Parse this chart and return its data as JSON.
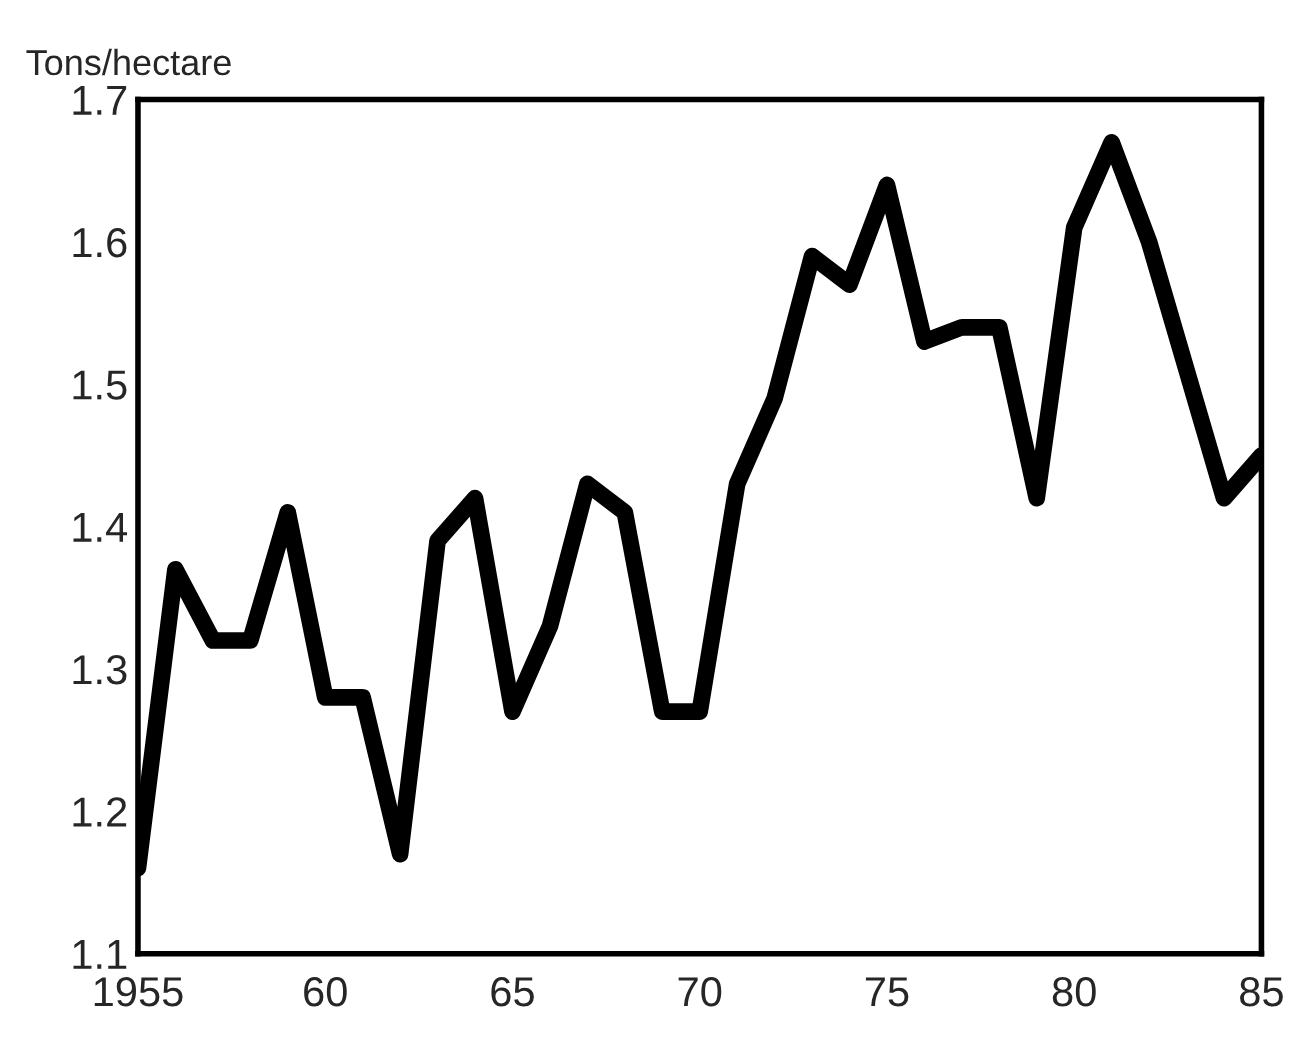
{
  "chart_data": {
    "type": "line",
    "ylabel": "Tons/hectare",
    "x": [
      1955,
      1956,
      1957,
      1958,
      1959,
      1960,
      1961,
      1962,
      1963,
      1964,
      1965,
      1966,
      1967,
      1968,
      1969,
      1970,
      1971,
      1972,
      1973,
      1974,
      1975,
      1976,
      1977,
      1978,
      1979,
      1980,
      1981,
      1982,
      1983,
      1984,
      1985
    ],
    "series": [
      {
        "color": "#000000",
        "values": [
          1.16,
          1.37,
          1.32,
          1.32,
          1.41,
          1.28,
          1.28,
          1.17,
          1.39,
          1.42,
          1.27,
          1.33,
          1.43,
          1.41,
          1.27,
          1.27,
          1.43,
          1.49,
          1.59,
          1.57,
          1.64,
          1.53,
          1.54,
          1.54,
          1.42,
          1.61,
          1.67,
          1.6,
          1.51,
          1.42,
          1.45
        ]
      }
    ],
    "xlim": [
      1955,
      1985
    ],
    "ylim": [
      1.1,
      1.7
    ],
    "xticks": [
      {
        "value": 1955,
        "label": "1955"
      },
      {
        "value": 1960,
        "label": "60"
      },
      {
        "value": 1965,
        "label": "65"
      },
      {
        "value": 1970,
        "label": "70"
      },
      {
        "value": 1975,
        "label": "75"
      },
      {
        "value": 1980,
        "label": "80"
      },
      {
        "value": 1985,
        "label": "85"
      }
    ],
    "yticks": [
      1.1,
      1.2,
      1.3,
      1.4,
      1.5,
      1.6,
      1.7
    ],
    "grid": false,
    "marker": "none",
    "line_style": "solid"
  }
}
